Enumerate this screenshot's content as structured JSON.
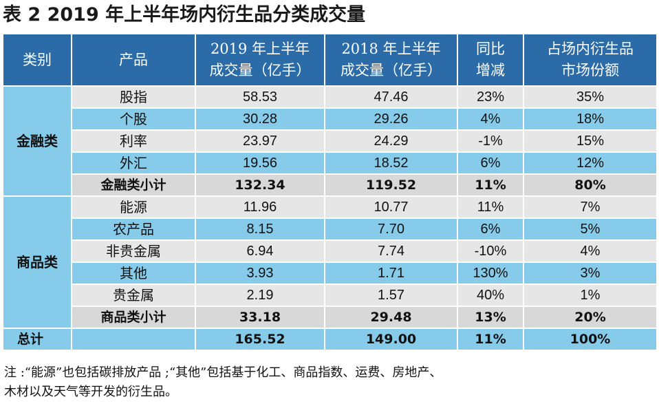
{
  "title": "表 2 2019 年上半年场内衍生品分类成交量",
  "header": {
    "category": "类别",
    "product": "产品",
    "vol2019_line1": "2019 年上半年",
    "vol2019_line2": "成交量（亿手）",
    "vol2018_line1": "2018 年上半年",
    "vol2018_line2": "成交量（亿手）",
    "yoy_line1": "同比",
    "yoy_line2": "增减",
    "share_line1": "占场内衍生品",
    "share_line2": "市场份额"
  },
  "groups": [
    {
      "name": "金融类",
      "rows": [
        {
          "product": "股指",
          "vol2019": "58.53",
          "vol2018": "47.46",
          "yoy": "23%",
          "share": "35%"
        },
        {
          "product": "个股",
          "vol2019": "30.28",
          "vol2018": "29.26",
          "yoy": "4%",
          "share": "18%"
        },
        {
          "product": "利率",
          "vol2019": "23.97",
          "vol2018": "24.29",
          "yoy": "-1%",
          "share": "15%"
        },
        {
          "product": "外汇",
          "vol2019": "19.56",
          "vol2018": "18.52",
          "yoy": "6%",
          "share": "12%"
        }
      ],
      "subtotal": {
        "product": "金融类小计",
        "vol2019": "132.34",
        "vol2018": "119.52",
        "yoy": "11%",
        "share": "80%"
      }
    },
    {
      "name": "商品类",
      "rows": [
        {
          "product": "能源",
          "vol2019": "11.96",
          "vol2018": "10.77",
          "yoy": "11%",
          "share": "7%"
        },
        {
          "product": "农产品",
          "vol2019": "8.15",
          "vol2018": "7.70",
          "yoy": "6%",
          "share": "5%"
        },
        {
          "product": "非贵金属",
          "vol2019": "6.94",
          "vol2018": "7.74",
          "yoy": "-10%",
          "share": "4%"
        },
        {
          "product": "其他",
          "vol2019": "3.93",
          "vol2018": "1.71",
          "yoy": "130%",
          "share": "3%"
        },
        {
          "product": "贵金属",
          "vol2019": "2.19",
          "vol2018": "1.57",
          "yoy": "40%",
          "share": "1%"
        }
      ],
      "subtotal": {
        "product": "商品类小计",
        "vol2019": "33.18",
        "vol2018": "29.48",
        "yoy": "13%",
        "share": "20%"
      }
    }
  ],
  "total": {
    "label": "总计",
    "vol2019": "165.52",
    "vol2018": "149.00",
    "yoy": "11%",
    "share": "100%"
  },
  "note_line1": "注 :“能源”也包括碳排放产品 ;“其他”包括基于化工、商品指数、运费、房地产、",
  "note_line2": "木材以及天气等开发的衍生品。",
  "colors": {
    "header_bg": "#2b6ba8",
    "row_gray": "#e6e6e6",
    "row_blue": "#86cbea"
  }
}
